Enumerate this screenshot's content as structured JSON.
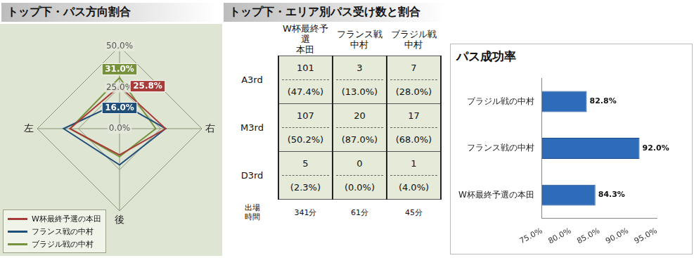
{
  "chart_data": [
    {
      "type": "radar",
      "title": "トップ下・パス方向割合",
      "categories": [
        null,
        "右",
        "後",
        "左"
      ],
      "ylim": [
        0,
        50
      ],
      "yticks": [
        {
          "value": 0,
          "label": "0.0%"
        },
        {
          "value": 25,
          "label": "25.0%"
        },
        {
          "value": 50,
          "label": "50.0%"
        }
      ],
      "grid": true,
      "legend": "lower left",
      "data_labels": true,
      "series": [
        {
          "name": "W杯最終予選の本田",
          "color": "#a63b37",
          "values": [
            25.8,
            28,
            16,
            30.2
          ],
          "value_labels": [
            "25.8%",
            null,
            null,
            null
          ]
        },
        {
          "name": "フランス戦の中村",
          "color": "#1f4e79",
          "values": [
            16.0,
            28,
            22,
            34
          ],
          "value_labels": [
            "16.0%",
            null,
            null,
            null
          ]
        },
        {
          "name": "ブラジル戦の中村",
          "color": "#76923c",
          "values": [
            31.0,
            22,
            17,
            30
          ],
          "value_labels": [
            "31.0%",
            null,
            null,
            null
          ]
        }
      ]
    },
    {
      "type": "table",
      "title": "トップ下・エリア別パス受け数と割合",
      "columns": [
        "W杯最終予選\n本田",
        "フランス戦\n中村",
        "ブラジル戦\n中村"
      ],
      "rows": [
        {
          "label": "A3rd",
          "counts": [
            101,
            3,
            7
          ],
          "shares": [
            "(47.4%)",
            "(13.0%)",
            "(28.0%)"
          ]
        },
        {
          "label": "M3rd",
          "counts": [
            107,
            20,
            17
          ],
          "shares": [
            "(50.2%)",
            "(87.0%)",
            "(68.0%)"
          ]
        },
        {
          "label": "D3rd",
          "counts": [
            5,
            0,
            1
          ],
          "shares": [
            "(2.3%)",
            "(0.0%)",
            "(4.0%)"
          ]
        }
      ],
      "footer": {
        "label": "出場\n時間",
        "values": [
          "341分",
          "61分",
          "45分"
        ]
      }
    },
    {
      "type": "bar",
      "title": "パス成功率",
      "orientation": "horizontal",
      "categories": [
        "ブラジル戦の中村",
        "フランス戦の中村",
        "W杯最終予選の本田"
      ],
      "values": [
        82.8,
        92.0,
        84.3
      ],
      "value_labels": [
        "82.8%",
        "92.0%",
        "84.3%"
      ],
      "data_labels": true,
      "color": "#2e6bb8",
      "xlim": [
        75,
        95
      ],
      "xticks": [
        {
          "value": 75,
          "label": "75.0%"
        },
        {
          "value": 80,
          "label": "80.0%"
        },
        {
          "value": 85,
          "label": "85.0%"
        },
        {
          "value": 90,
          "label": "90.0%"
        },
        {
          "value": 95,
          "label": "95.0%"
        }
      ],
      "grid": false
    }
  ]
}
